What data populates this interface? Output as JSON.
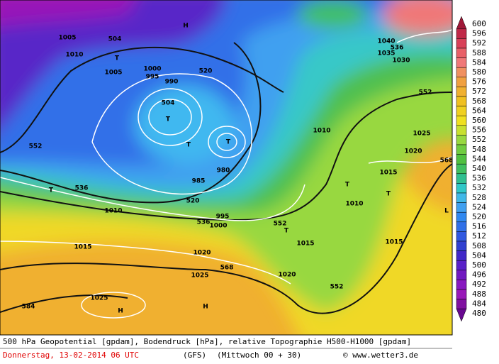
{
  "map": {
    "labels": [
      "504",
      "520",
      "536",
      "552",
      "568",
      "504",
      "520",
      "536",
      "552",
      "552",
      "536",
      "552",
      "568",
      "584",
      "1005",
      "1010",
      "1005",
      "1000",
      "995",
      "990",
      "985",
      "980",
      "995",
      "1000",
      "1010",
      "1015",
      "1020",
      "1025",
      "1030",
      "1035",
      "1040",
      "1025",
      "1020",
      "1015",
      "1010",
      "1015",
      "1025",
      "1010",
      "1015",
      "1020",
      "T",
      "T",
      "T",
      "T",
      "T",
      "T",
      "T",
      "T",
      "H",
      "H",
      "H",
      "L"
    ]
  },
  "legend": {
    "levels": [
      600,
      596,
      592,
      588,
      584,
      580,
      576,
      572,
      568,
      564,
      560,
      556,
      552,
      548,
      544,
      540,
      536,
      532,
      528,
      524,
      520,
      516,
      512,
      508,
      504,
      500,
      496,
      492,
      488,
      484,
      480
    ],
    "colors": [
      "#a01838",
      "#c02848",
      "#d84058",
      "#e86068",
      "#f07878",
      "#f09060",
      "#f0a040",
      "#f0b030",
      "#f0c020",
      "#f0d020",
      "#f0e020",
      "#c8e030",
      "#98d840",
      "#70cc40",
      "#50c040",
      "#40c060",
      "#30c090",
      "#30c8c8",
      "#40b8e8",
      "#40a0f0",
      "#3088f0",
      "#3070e8",
      "#3058e0",
      "#3040d0",
      "#4028c8",
      "#5820c8",
      "#7018c0",
      "#8818c0",
      "#9818b8",
      "#8010a0",
      "#680890"
    ]
  },
  "footer": {
    "line1": "500 hPa Geopotential [gpdam], Bodendruck [hPa], relative Topographie H500-H1000 [gpdam]",
    "date": "Donnerstag, 13-02-2014  06 UTC",
    "model": "(GFS)",
    "run": "(Mittwoch 00 + 30)",
    "credit": "© www.wetter3.de"
  }
}
